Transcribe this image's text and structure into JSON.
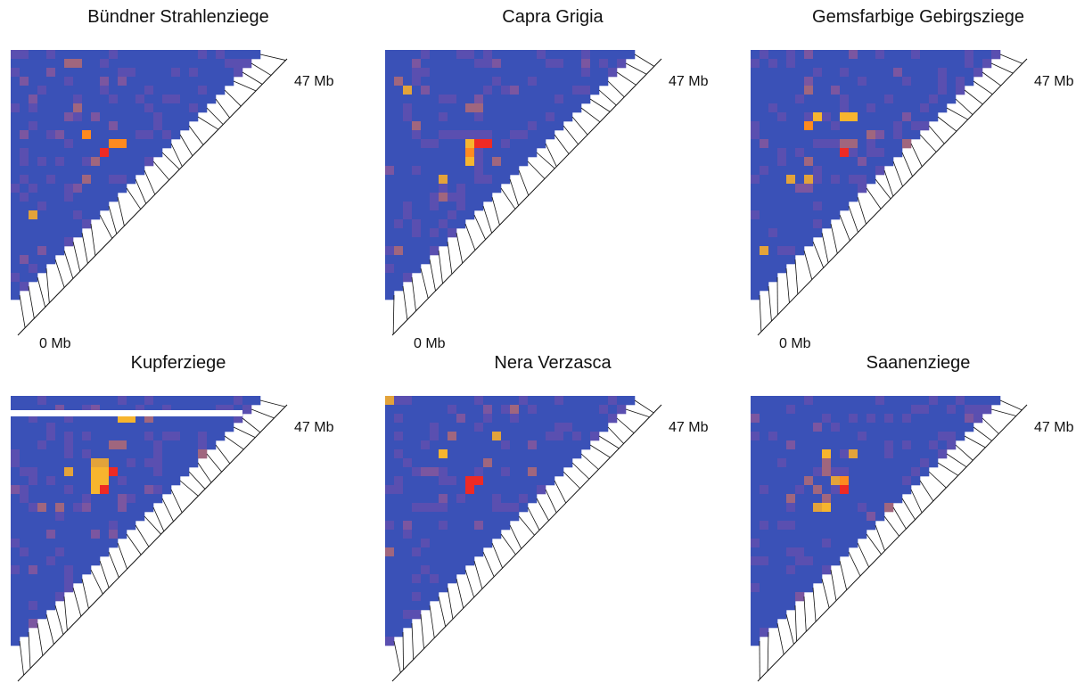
{
  "colors": {
    "background_cell": "#3a51b7",
    "scale": [
      "#3a51b7",
      "#5a4fb0",
      "#7b56a0",
      "#a0667e",
      "#e3a33a",
      "#f7b52e",
      "#ff8a1e",
      "#ee2a24"
    ],
    "link_line": "#111111"
  },
  "chart_data": [
    {
      "type": "heatmap",
      "title": "Bündner Strahlenziege",
      "axis_start_label": "0 Mb",
      "axis_end_label": "47 Mb",
      "grid": false,
      "hotspots": [
        {
          "row": 11,
          "col": 10,
          "level": 7
        },
        {
          "row": 10,
          "col": 11,
          "level": 6
        },
        {
          "row": 10,
          "col": 12,
          "level": 6
        },
        {
          "row": 9,
          "col": 8,
          "level": 6
        },
        {
          "row": 12,
          "col": 9,
          "level": 3
        },
        {
          "row": 14,
          "col": 8,
          "level": 3
        },
        {
          "row": 18,
          "col": 2,
          "level": 4
        },
        {
          "row": 6,
          "col": 7,
          "level": 3
        },
        {
          "row": 1,
          "col": 7,
          "level": 3
        }
      ]
    },
    {
      "type": "heatmap",
      "title": "Capra Grigia",
      "axis_start_label": "0 Mb",
      "axis_end_label": "47 Mb",
      "grid": false,
      "hotspots": [
        {
          "row": 10,
          "col": 10,
          "level": 7
        },
        {
          "row": 10,
          "col": 11,
          "level": 7
        },
        {
          "row": 11,
          "col": 9,
          "level": 6
        },
        {
          "row": 10,
          "col": 9,
          "level": 5
        },
        {
          "row": 12,
          "col": 9,
          "level": 5
        },
        {
          "row": 6,
          "col": 9,
          "level": 3
        },
        {
          "row": 6,
          "col": 10,
          "level": 3
        },
        {
          "row": 8,
          "col": 3,
          "level": 3
        },
        {
          "row": 14,
          "col": 6,
          "level": 4
        },
        {
          "row": 4,
          "col": 2,
          "level": 4
        },
        {
          "row": 22,
          "col": 1,
          "level": 3
        }
      ]
    },
    {
      "type": "heatmap",
      "title": "Gemsfarbige Gebirgsziege",
      "axis_start_label": "0 Mb",
      "axis_end_label": "47 Mb",
      "grid": false,
      "hotspots": [
        {
          "row": 11,
          "col": 10,
          "level": 7
        },
        {
          "row": 10,
          "col": 10,
          "level": 3
        },
        {
          "row": 10,
          "col": 11,
          "level": 3
        },
        {
          "row": 7,
          "col": 10,
          "level": 5
        },
        {
          "row": 7,
          "col": 11,
          "level": 5
        },
        {
          "row": 8,
          "col": 6,
          "level": 6
        },
        {
          "row": 7,
          "col": 7,
          "level": 5
        },
        {
          "row": 14,
          "col": 4,
          "level": 4
        },
        {
          "row": 14,
          "col": 6,
          "level": 4
        },
        {
          "row": 12,
          "col": 6,
          "level": 3
        },
        {
          "row": 22,
          "col": 1,
          "level": 4
        }
      ]
    },
    {
      "type": "heatmap",
      "title": "Kupferziege",
      "axis_start_label": "0 Mb",
      "axis_end_label": "47 Mb",
      "grid": false,
      "hotspots": [
        {
          "row": 8,
          "col": 9,
          "level": 5
        },
        {
          "row": 8,
          "col": 10,
          "level": 5
        },
        {
          "row": 9,
          "col": 9,
          "level": 5
        },
        {
          "row": 9,
          "col": 10,
          "level": 5
        },
        {
          "row": 10,
          "col": 9,
          "level": 5
        },
        {
          "row": 10,
          "col": 10,
          "level": 7
        },
        {
          "row": 7,
          "col": 9,
          "level": 4
        },
        {
          "row": 7,
          "col": 10,
          "level": 4
        },
        {
          "row": 8,
          "col": 11,
          "level": 7
        },
        {
          "row": 2,
          "col": 12,
          "level": 5
        },
        {
          "row": 2,
          "col": 13,
          "level": 5
        },
        {
          "row": 5,
          "col": 11,
          "level": 3
        },
        {
          "row": 5,
          "col": 12,
          "level": 3
        },
        {
          "row": 8,
          "col": 6,
          "level": 4
        },
        {
          "row": 12,
          "col": 3,
          "level": 3
        },
        {
          "row": 12,
          "col": 5,
          "level": 3
        }
      ]
    },
    {
      "type": "heatmap",
      "title": "Nera Verzasca",
      "axis_start_label": "0 Mb",
      "axis_end_label": "47 Mb",
      "grid": false,
      "hotspots": [
        {
          "row": 9,
          "col": 9,
          "level": 7
        },
        {
          "row": 9,
          "col": 10,
          "level": 7
        },
        {
          "row": 10,
          "col": 9,
          "level": 7
        },
        {
          "row": 6,
          "col": 6,
          "level": 5
        },
        {
          "row": 4,
          "col": 12,
          "level": 4
        },
        {
          "row": 0,
          "col": 0,
          "level": 4
        },
        {
          "row": 7,
          "col": 11,
          "level": 3
        }
      ]
    },
    {
      "type": "heatmap",
      "title": "Saanenziege",
      "axis_start_label": "0 Mb",
      "axis_end_label": "47 Mb",
      "grid": false,
      "hotspots": [
        {
          "row": 10,
          "col": 10,
          "level": 7
        },
        {
          "row": 9,
          "col": 10,
          "level": 6
        },
        {
          "row": 9,
          "col": 9,
          "level": 4
        },
        {
          "row": 8,
          "col": 8,
          "level": 3
        },
        {
          "row": 7,
          "col": 8,
          "level": 3
        },
        {
          "row": 6,
          "col": 8,
          "level": 5
        },
        {
          "row": 11,
          "col": 8,
          "level": 3
        },
        {
          "row": 12,
          "col": 8,
          "level": 5
        },
        {
          "row": 6,
          "col": 11,
          "level": 4
        },
        {
          "row": 9,
          "col": 6,
          "level": 3
        },
        {
          "row": 10,
          "col": 7,
          "level": 3
        },
        {
          "row": 12,
          "col": 7,
          "level": 4
        }
      ]
    }
  ]
}
